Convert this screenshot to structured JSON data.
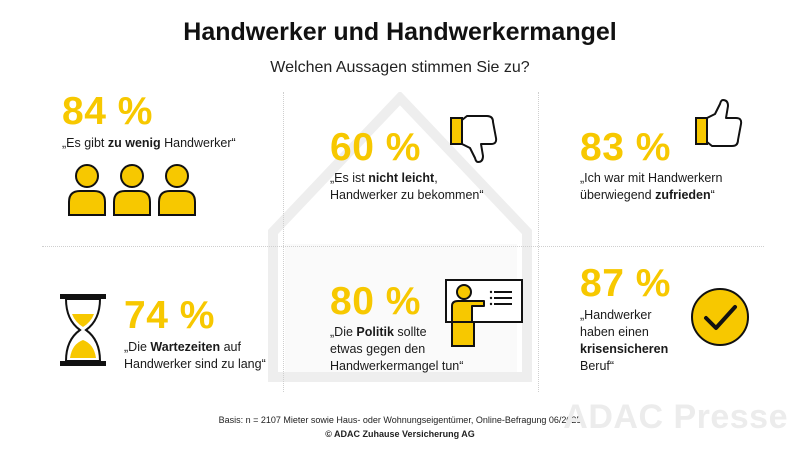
{
  "title": "Handwerker und Handwerkermangel",
  "subtitle": "Welchen Aussagen stimmen Sie zu?",
  "stats": [
    {
      "percent": "84 %",
      "text_before": "„Es gibt ",
      "text_bold": "zu wenig",
      "text_after": " Handwerker“",
      "icon": "people-icon"
    },
    {
      "percent": "60 %",
      "line1_before": "„Es ist ",
      "line1_bold": "nicht leicht",
      "line1_after": ",",
      "line2": "Handwerker zu bekommen“",
      "icon": "thumbs-down-icon"
    },
    {
      "percent": "83 %",
      "line1": "„Ich war mit Handwerkern",
      "line2_before": "überwiegend ",
      "line2_bold": "zufrieden",
      "line2_after": "“",
      "icon": "thumbs-up-icon"
    },
    {
      "percent": "74 %",
      "line1_before": "„Die ",
      "line1_bold": "Wartezeiten",
      "line1_after": " auf",
      "line2": "Handwerker sind zu lang“",
      "icon": "hourglass-icon"
    },
    {
      "percent": "80 %",
      "line1_before": "„Die ",
      "line1_bold": "Politik",
      "line1_after": " sollte",
      "line2": "etwas gegen den",
      "line3": "Handwerkermangel tun“",
      "icon": "presenter-board-icon"
    },
    {
      "percent": "87 %",
      "line1": "„Handwerker",
      "line2": "haben einen",
      "line3_bold": "krisensicheren",
      "line4": "Beruf“",
      "icon": "checkmark-circle-icon"
    }
  ],
  "footer": {
    "basis": "Basis: n = 2107 Mieter sowie Haus- oder Wohnungseigentümer, Online-Befragung 06/2025",
    "copyright": "© ADAC Zuhause Versicherung AG"
  },
  "watermark": "ADAC Presse",
  "colors": {
    "accent": "#f7c800",
    "text": "#1a1a1a",
    "outline": "#111111",
    "house_outline": "#eeeeee"
  }
}
